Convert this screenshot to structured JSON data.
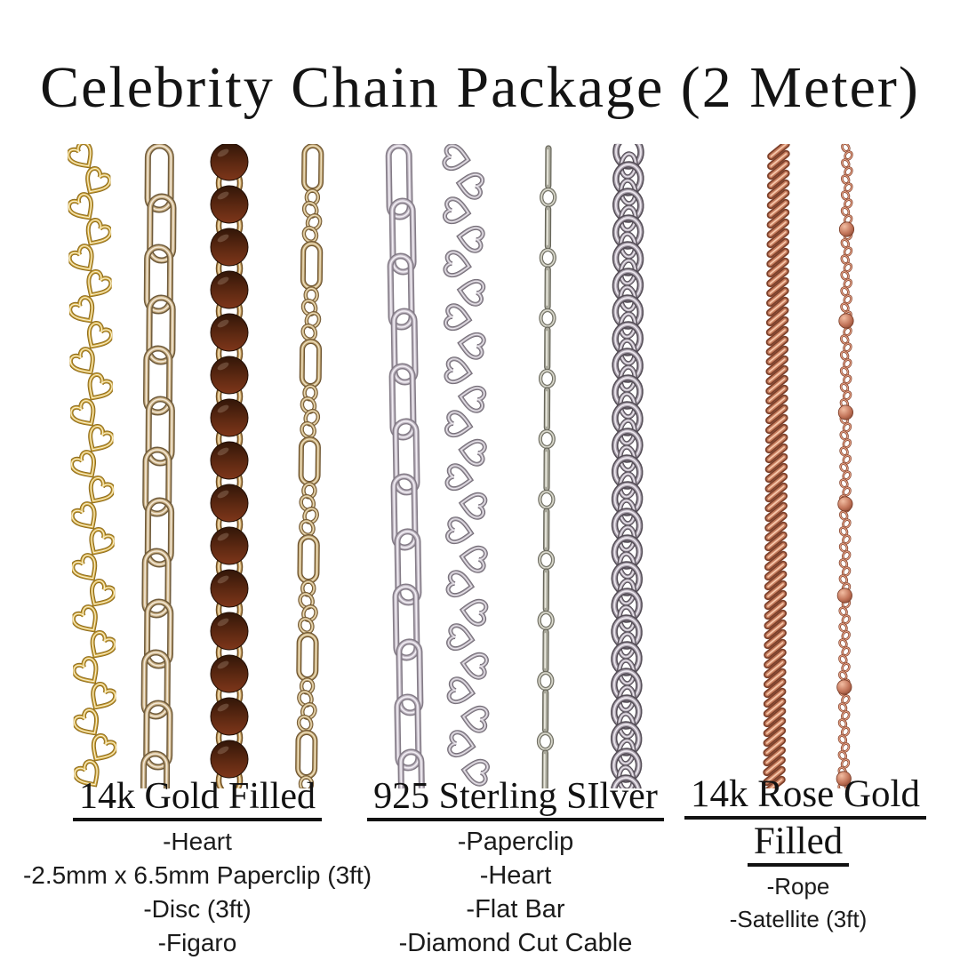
{
  "title": "Celebrity Chain Package (2 Meter)",
  "background": "#ffffff",
  "text_color": "#141414",
  "columns": [
    {
      "id": "gold",
      "header_lines": [
        "14k Gold Filled"
      ],
      "items": [
        "-Heart",
        "-2.5mm x 6.5mm Paperclip (3ft)",
        "-Disc (3ft)",
        "-Figaro"
      ]
    },
    {
      "id": "silver",
      "header_lines": [
        "925 Sterling SIlver"
      ],
      "items": [
        "-Paperclip",
        "-Heart",
        "-Flat Bar",
        "-Diamond Cut Cable"
      ]
    },
    {
      "id": "rose",
      "header_lines": [
        "14k Rose Gold",
        "Filled"
      ],
      "items": [
        "-Rope",
        "-Satellite (3ft)"
      ]
    }
  ],
  "chains": [
    {
      "id": "gold-heart",
      "label": "Heart chain",
      "category": "14k Gold Filled",
      "style": "heart-zigzag",
      "palette": {
        "main": "#D2A83C",
        "light": "#F8F0CF",
        "dark": "#8E6C1E"
      }
    },
    {
      "id": "gold-paperclip",
      "label": "2.5mm x 6.5mm Paperclip chain",
      "category": "14k Gold Filled",
      "style": "paperclip",
      "palette": {
        "main": "#C8AE82",
        "light": "#F3E9D8",
        "dark": "#6F5B3C"
      }
    },
    {
      "id": "gold-disc",
      "label": "Disc chain",
      "category": "14k Gold Filled",
      "style": "disc",
      "palette": {
        "main": "#C49C5B",
        "light": "#F4E4C0",
        "dark": "#6E4F26",
        "disc_top": "#321608",
        "disc_bottom": "#7E361A"
      }
    },
    {
      "id": "gold-figaro",
      "label": "Figaro chain",
      "category": "14k Gold Filled",
      "style": "figaro",
      "palette": {
        "main": "#C0A471",
        "light": "#EFE2C2",
        "dark": "#6E5531"
      }
    },
    {
      "id": "silver-paperclip",
      "label": "Paperclip chain",
      "category": "925 Sterling SIlver",
      "style": "paperclip",
      "palette": {
        "main": "#BFB7C2",
        "light": "#F2EEF4",
        "dark": "#837B86"
      }
    },
    {
      "id": "silver-heart",
      "label": "Heart chain",
      "category": "925 Sterling SIlver",
      "style": "heart-side",
      "palette": {
        "main": "#ACA5AF",
        "light": "#ECE8EE",
        "dark": "#746D77"
      }
    },
    {
      "id": "silver-flatbar",
      "label": "Flat Bar chain",
      "category": "925 Sterling SIlver",
      "style": "flatbar",
      "palette": {
        "main": "#A9A89B",
        "light": "#E8E7DC",
        "dark": "#67665A"
      }
    },
    {
      "id": "silver-cable",
      "label": "Diamond Cut Cable chain",
      "category": "925 Sterling SIlver",
      "style": "cable",
      "palette": {
        "main": "#ABA3AE",
        "light": "#EDE8EF",
        "dark": "#554E57"
      }
    },
    {
      "id": "rose-rope",
      "label": "Rope chain",
      "category": "14k Rose Gold Filled",
      "style": "rope",
      "palette": {
        "main": "#C57C5D",
        "light": "#F6C6AA",
        "dark": "#7C3F29"
      }
    },
    {
      "id": "rose-satellite",
      "label": "Satellite chain",
      "category": "14k Rose Gold Filled",
      "style": "satellite",
      "palette": {
        "main": "#C27459",
        "light": "#F2BDA2",
        "dark": "#793C27"
      }
    }
  ]
}
